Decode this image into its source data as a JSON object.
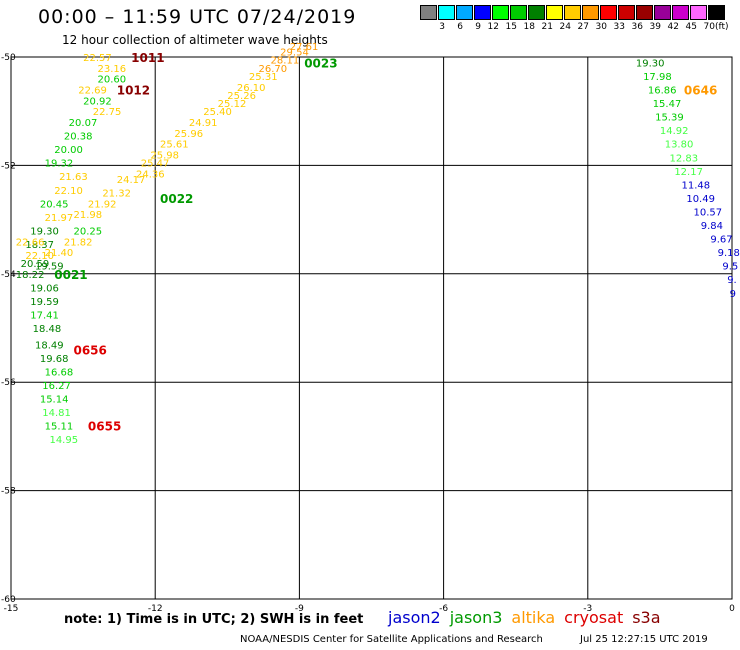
{
  "header": {
    "title": "00:00 – 11:59 UTC 07/24/2019",
    "subtitle": "12 hour collection of altimeter wave heights"
  },
  "colorbar": {
    "swatches": [
      "#808080",
      "#00ffff",
      "#00aaff",
      "#0000ff",
      "#00ff00",
      "#00cc00",
      "#008000",
      "#ffff00",
      "#ffcc00",
      "#ff9900",
      "#ff0000",
      "#cc0000",
      "#990000",
      "#990099",
      "#cc00cc",
      "#ff66ff",
      "#000000"
    ],
    "labels": [
      "3",
      "6",
      "9",
      "12",
      "15",
      "18",
      "21",
      "24",
      "27",
      "30",
      "33",
      "36",
      "39",
      "42",
      "45",
      "70"
    ],
    "unit": "(ft)"
  },
  "footer": {
    "note": "note:  1) Time is in UTC;  2) SWH is in feet",
    "credit": "NOAA/NESDIS Center for Satellite Applications and Research",
    "timestamp": "Jul 25 12:27:15 UTC 2019"
  },
  "legend": [
    {
      "name": "jason2",
      "color": "#0000cc"
    },
    {
      "name": "jason3",
      "color": "#009900"
    },
    {
      "name": "altika",
      "color": "#ff9900"
    },
    {
      "name": "cryosat",
      "color": "#dd0000"
    },
    {
      "name": "s3a",
      "color": "#880000"
    }
  ],
  "chart_data": {
    "type": "scatter",
    "title": "00:00 – 11:59 UTC 07/24/2019",
    "subtitle": "12 hour collection of altimeter wave heights",
    "x_ticks": [
      "-15",
      "-12",
      "-9",
      "-6",
      "-3",
      "0"
    ],
    "y_ticks": [
      "-50",
      "-52",
      "-54",
      "-56",
      "-58",
      "-60"
    ],
    "xlim": [
      -15,
      0
    ],
    "ylim": [
      -60,
      -50
    ],
    "grid": true,
    "time_labels": [
      {
        "text": "1011",
        "lon": -12.5,
        "lat": -50.0,
        "color": "#880000"
      },
      {
        "text": "1012",
        "lon": -12.8,
        "lat": -50.6,
        "color": "#880000"
      },
      {
        "text": "0023",
        "lon": -8.9,
        "lat": -50.1,
        "color": "#009900"
      },
      {
        "text": "0646",
        "lon": -1.0,
        "lat": -50.6,
        "color": "#ff9900"
      },
      {
        "text": "0022",
        "lon": -11.9,
        "lat": -52.6,
        "color": "#009900"
      },
      {
        "text": "0021",
        "lon": -14.1,
        "lat": -54.0,
        "color": "#009900"
      },
      {
        "text": "0656",
        "lon": -13.7,
        "lat": -55.4,
        "color": "#dd0000"
      },
      {
        "text": "0655",
        "lon": -13.4,
        "lat": -56.8,
        "color": "#dd0000"
      }
    ],
    "series": [
      {
        "name": "jason3",
        "points": [
          {
            "lon": -13.2,
            "lat": -50.4,
            "swh": "20.60",
            "color": "#00cc00"
          },
          {
            "lon": -13.5,
            "lat": -50.8,
            "swh": "20.92",
            "color": "#00cc00"
          },
          {
            "lon": -13.8,
            "lat": -51.2,
            "swh": "20.07",
            "color": "#00cc00"
          },
          {
            "lon": -13.9,
            "lat": -51.45,
            "swh": "20.38",
            "color": "#00cc00"
          },
          {
            "lon": -14.1,
            "lat": -51.7,
            "swh": "20.00",
            "color": "#00cc00"
          },
          {
            "lon": -14.3,
            "lat": -51.95,
            "swh": "19.32",
            "color": "#00cc00"
          },
          {
            "lon": -14.4,
            "lat": -52.7,
            "swh": "20.45",
            "color": "#00cc00"
          },
          {
            "lon": -14.6,
            "lat": -53.2,
            "swh": "19.30",
            "color": "#008000"
          },
          {
            "lon": -13.7,
            "lat": -53.2,
            "swh": "20.25",
            "color": "#00cc00"
          },
          {
            "lon": -14.7,
            "lat": -53.45,
            "swh": "18.37",
            "color": "#008000"
          },
          {
            "lon": -14.5,
            "lat": -53.85,
            "swh": "19.59",
            "color": "#008000"
          },
          {
            "lon": -14.6,
            "lat": -54.25,
            "swh": "19.06",
            "color": "#008000"
          },
          {
            "lon": -14.6,
            "lat": -54.5,
            "swh": "19.59",
            "color": "#008000"
          },
          {
            "lon": -14.6,
            "lat": -54.75,
            "swh": "17.41",
            "color": "#00cc00"
          },
          {
            "lon": -14.55,
            "lat": -55.0,
            "swh": "18.48",
            "color": "#008000"
          },
          {
            "lon": -14.5,
            "lat": -55.3,
            "swh": "18.49",
            "color": "#008000"
          },
          {
            "lon": -14.4,
            "lat": -55.55,
            "swh": "19.68",
            "color": "#008000"
          },
          {
            "lon": -14.3,
            "lat": -55.8,
            "swh": "16.68",
            "color": "#00cc00"
          },
          {
            "lon": -14.35,
            "lat": -56.05,
            "swh": "16.27",
            "color": "#00cc00"
          },
          {
            "lon": -14.4,
            "lat": -56.3,
            "swh": "15.14",
            "color": "#00cc00"
          },
          {
            "lon": -14.35,
            "lat": -56.55,
            "swh": "14.81",
            "color": "#44ff44"
          },
          {
            "lon": -14.3,
            "lat": -56.8,
            "swh": "15.11",
            "color": "#00cc00"
          },
          {
            "lon": -14.2,
            "lat": -57.05,
            "swh": "14.95",
            "color": "#44ff44"
          }
        ]
      },
      {
        "name": "jason3 (descending)",
        "points": [
          {
            "lon": -2.0,
            "lat": -50.1,
            "swh": "19.30",
            "color": "#008000"
          },
          {
            "lon": -1.85,
            "lat": -50.35,
            "swh": "17.98",
            "color": "#00cc00"
          },
          {
            "lon": -1.75,
            "lat": -50.6,
            "swh": "16.86",
            "color": "#00cc00"
          },
          {
            "lon": -1.65,
            "lat": -50.85,
            "swh": "15.47",
            "color": "#00cc00"
          },
          {
            "lon": -1.6,
            "lat": -51.1,
            "swh": "15.39",
            "color": "#00cc00"
          },
          {
            "lon": -1.5,
            "lat": -51.35,
            "swh": "14.92",
            "color": "#44ff44"
          },
          {
            "lon": -1.4,
            "lat": -51.6,
            "swh": "13.80",
            "color": "#44ff44"
          },
          {
            "lon": -1.3,
            "lat": -51.85,
            "swh": "12.83",
            "color": "#44ff44"
          },
          {
            "lon": -1.2,
            "lat": -52.1,
            "swh": "12.17",
            "color": "#44ff44"
          },
          {
            "lon": -1.05,
            "lat": -52.35,
            "swh": "11.48",
            "color": "#0000cc"
          },
          {
            "lon": -0.95,
            "lat": -52.6,
            "swh": "10.49",
            "color": "#0000cc"
          },
          {
            "lon": -0.8,
            "lat": -52.85,
            "swh": "10.57",
            "color": "#0000cc"
          },
          {
            "lon": -0.65,
            "lat": -53.1,
            "swh": "9.84",
            "color": "#0000cc"
          },
          {
            "lon": -0.45,
            "lat": -53.35,
            "swh": "9.67",
            "color": "#0000cc"
          },
          {
            "lon": -0.3,
            "lat": -53.6,
            "swh": "9.18",
            "color": "#0000cc"
          },
          {
            "lon": -0.2,
            "lat": -53.85,
            "swh": "9.5",
            "color": "#0000cc"
          },
          {
            "lon": -0.1,
            "lat": -54.1,
            "swh": "9.",
            "color": "#0000cc"
          },
          {
            "lon": -0.05,
            "lat": -54.35,
            "swh": "9",
            "color": "#0000cc"
          }
        ]
      },
      {
        "name": "altika",
        "points": [
          {
            "lon": -13.5,
            "lat": -50.0,
            "swh": "22.57",
            "color": "#ffcc00"
          },
          {
            "lon": -13.2,
            "lat": -50.2,
            "swh": "23.16",
            "color": "#ffcc00"
          },
          {
            "lon": -13.6,
            "lat": -50.6,
            "swh": "22.69",
            "color": "#ffcc00"
          },
          {
            "lon": -13.3,
            "lat": -51.0,
            "swh": "22.75",
            "color": "#ffcc00"
          },
          {
            "lon": -14.0,
            "lat": -52.2,
            "swh": "21.63",
            "color": "#ffcc00"
          },
          {
            "lon": -14.1,
            "lat": -52.45,
            "swh": "22.10",
            "color": "#ffcc00"
          },
          {
            "lon": -14.3,
            "lat": -52.95,
            "swh": "21.97",
            "color": "#ffcc00"
          },
          {
            "lon": -13.9,
            "lat": -53.4,
            "swh": "21.82",
            "color": "#ffcc00"
          },
          {
            "lon": -14.3,
            "lat": -53.6,
            "swh": "21.40",
            "color": "#ffcc00"
          },
          {
            "lon": -14.7,
            "lat": -53.65,
            "swh": "22.10",
            "color": "#ffcc00"
          },
          {
            "lon": -13.7,
            "lat": -52.9,
            "swh": "21.98",
            "color": "#ffcc00"
          },
          {
            "lon": -13.4,
            "lat": -52.7,
            "swh": "21.92",
            "color": "#ffcc00"
          },
          {
            "lon": -13.1,
            "lat": -52.5,
            "swh": "21.32",
            "color": "#ffcc00"
          },
          {
            "lon": -12.8,
            "lat": -52.25,
            "swh": "24.17",
            "color": "#ffcc00"
          },
          {
            "lon": -12.4,
            "lat": -52.15,
            "swh": "24.36",
            "color": "#ffcc00"
          },
          {
            "lon": -12.3,
            "lat": -51.95,
            "swh": "25.47",
            "color": "#ffcc00"
          },
          {
            "lon": -12.1,
            "lat": -51.8,
            "swh": "25.98",
            "color": "#ffcc00"
          },
          {
            "lon": -11.9,
            "lat": -51.6,
            "swh": "25.61",
            "color": "#ffcc00"
          },
          {
            "lon": -11.6,
            "lat": -51.4,
            "swh": "25.96",
            "color": "#ffcc00"
          },
          {
            "lon": -11.3,
            "lat": -51.2,
            "swh": "24.91",
            "color": "#ffcc00"
          },
          {
            "lon": -11.0,
            "lat": -51.0,
            "swh": "25.40",
            "color": "#ffcc00"
          },
          {
            "lon": -10.7,
            "lat": -50.85,
            "swh": "25.12",
            "color": "#ffcc00"
          },
          {
            "lon": -10.5,
            "lat": -50.7,
            "swh": "25.26",
            "color": "#ffcc00"
          },
          {
            "lon": -10.3,
            "lat": -50.55,
            "swh": "26.10",
            "color": "#ffcc00"
          },
          {
            "lon": -10.05,
            "lat": -50.35,
            "swh": "25.31",
            "color": "#ffcc00"
          },
          {
            "lon": -9.85,
            "lat": -50.2,
            "swh": "26.70",
            "color": "#ff9900"
          },
          {
            "lon": -9.6,
            "lat": -50.05,
            "swh": "28.11",
            "color": "#ff9900"
          },
          {
            "lon": -9.4,
            "lat": -49.9,
            "swh": "29.54",
            "color": "#ff9900"
          },
          {
            "lon": -9.2,
            "lat": -49.8,
            "swh": "27.61",
            "color": "#ff9900"
          }
        ]
      },
      {
        "name": "other",
        "points": [
          {
            "lon": -14.8,
            "lat": -53.8,
            "swh": "20.59",
            "color": "#008000"
          },
          {
            "lon": -14.9,
            "lat": -54.0,
            "swh": "18.22",
            "color": "#008000"
          },
          {
            "lon": -14.9,
            "lat": -53.4,
            "swh": "22.66",
            "color": "#ffcc00"
          }
        ]
      }
    ]
  }
}
